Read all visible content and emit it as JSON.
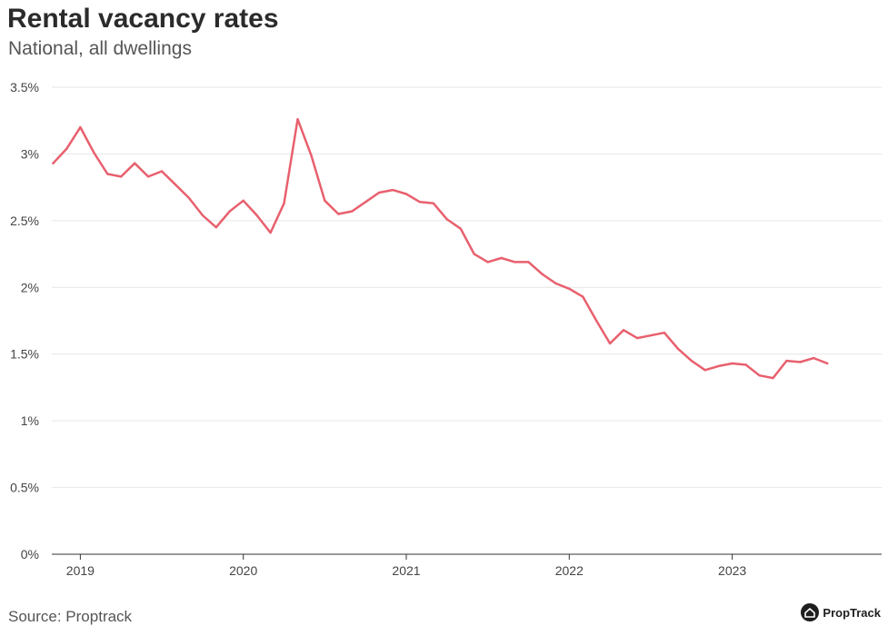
{
  "header": {
    "title": "Rental vacancy rates",
    "subtitle": "National, all dwellings"
  },
  "footer": {
    "source": "Source: Proptrack",
    "brand_name": "PropTrack",
    "brand_icon": "house-logo-icon"
  },
  "colors": {
    "line": "#e8606e",
    "grid": "#e6e6e6",
    "axis": "#333333"
  },
  "chart_data": {
    "type": "line",
    "title": "Rental vacancy rates",
    "subtitle": "National, all dwellings",
    "xlabel": "",
    "ylabel": "",
    "ylim": [
      0,
      3.5
    ],
    "xlim": [
      "2018-11",
      "2023-12"
    ],
    "y_ticks": [
      0,
      0.5,
      1,
      1.5,
      2,
      2.5,
      3,
      3.5
    ],
    "y_tick_labels": [
      "0%",
      "0.5%",
      "1%",
      "1.5%",
      "2%",
      "2.5%",
      "3%",
      "3.5%"
    ],
    "x_ticks": [
      "2019-01",
      "2020-01",
      "2021-01",
      "2022-01",
      "2023-01"
    ],
    "x_tick_labels": [
      "2019",
      "2020",
      "2021",
      "2022",
      "2023"
    ],
    "grid": true,
    "series": [
      {
        "x": [
          "2018-11",
          "2018-12",
          "2019-01",
          "2019-02",
          "2019-03",
          "2019-04",
          "2019-05",
          "2019-06",
          "2019-07",
          "2019-08",
          "2019-09",
          "2019-10",
          "2019-11",
          "2019-12",
          "2020-01",
          "2020-02",
          "2020-03",
          "2020-04",
          "2020-05",
          "2020-06",
          "2020-07",
          "2020-08",
          "2020-09",
          "2020-10",
          "2020-11",
          "2020-12",
          "2021-01",
          "2021-02",
          "2021-03",
          "2021-04",
          "2021-05",
          "2021-06",
          "2021-07",
          "2021-08",
          "2021-09",
          "2021-10",
          "2021-11",
          "2021-12",
          "2022-01",
          "2022-02",
          "2022-03",
          "2022-04",
          "2022-05",
          "2022-06",
          "2022-07",
          "2022-08",
          "2022-09",
          "2022-10",
          "2022-11",
          "2022-12",
          "2023-01",
          "2023-02",
          "2023-03",
          "2023-04",
          "2023-05",
          "2023-06",
          "2023-07",
          "2023-08"
        ],
        "values": [
          2.93,
          3.04,
          3.2,
          3.01,
          2.85,
          2.83,
          2.93,
          2.83,
          2.87,
          2.77,
          2.67,
          2.54,
          2.45,
          2.57,
          2.65,
          2.54,
          2.41,
          2.63,
          3.26,
          2.99,
          2.65,
          2.55,
          2.57,
          2.64,
          2.71,
          2.73,
          2.7,
          2.64,
          2.63,
          2.51,
          2.44,
          2.25,
          2.19,
          2.22,
          2.19,
          2.19,
          2.1,
          2.03,
          1.99,
          1.93,
          1.75,
          1.58,
          1.68,
          1.62,
          1.64,
          1.66,
          1.54,
          1.45,
          1.38,
          1.41,
          1.43,
          1.42,
          1.34,
          1.32,
          1.45,
          1.44,
          1.47,
          1.43
        ]
      }
    ]
  }
}
